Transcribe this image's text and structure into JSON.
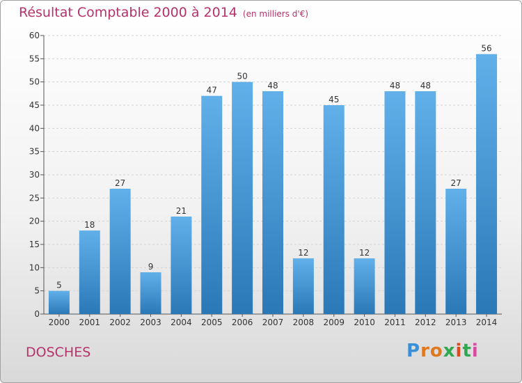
{
  "title": "Résultat Comptable 2000 à 2014",
  "subtitle": "(en milliers d'€)",
  "commune": "DOSCHES",
  "logo": {
    "letters": [
      "P",
      "r",
      "o",
      "x",
      "i",
      "t",
      "i"
    ],
    "colors": [
      "#3a8fd6",
      "#e0781e",
      "#e0781e",
      "#2fa84f",
      "#e04a1e",
      "#2fa84f",
      "#d94aa0"
    ]
  },
  "colors": {
    "bar": "#4d9fde",
    "bar_light": "#62b0ea",
    "bar_dark": "#2c7ab8",
    "title": "#b5326a"
  },
  "chart_data": {
    "type": "bar",
    "title": "Résultat Comptable 2000 à 2014",
    "subtitle": "(en milliers d'€)",
    "xlabel": "",
    "ylabel": "",
    "categories": [
      "2000",
      "2001",
      "2002",
      "2003",
      "2004",
      "2005",
      "2006",
      "2007",
      "2008",
      "2009",
      "2010",
      "2011",
      "2012",
      "2013",
      "2014"
    ],
    "values": [
      5,
      18,
      27,
      9,
      21,
      47,
      50,
      48,
      12,
      45,
      12,
      48,
      48,
      27,
      56
    ],
    "ylim": [
      0,
      60
    ],
    "yticks": [
      0,
      5,
      10,
      15,
      20,
      25,
      30,
      35,
      40,
      45,
      50,
      55,
      60
    ],
    "grid": true,
    "legend": "none"
  }
}
